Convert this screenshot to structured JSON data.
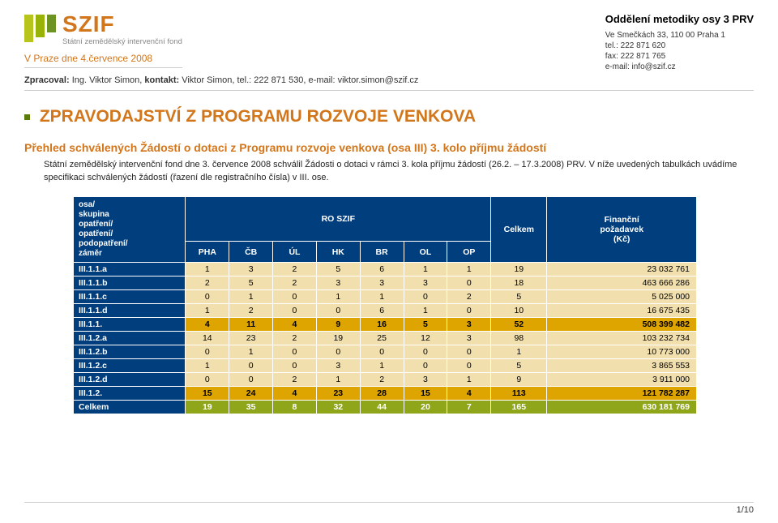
{
  "logo": {
    "main": "SZIF",
    "sub": "Státní zemědělský intervenční fond"
  },
  "date_line": "V Praze dne 4.července 2008",
  "right": {
    "dept": "Oddělení metodiky osy 3 PRV",
    "addr": "Ve Smečkách 33, 110 00 Praha 1",
    "tel": "tel.: 222 871 620",
    "fax": "fax: 222 871 765",
    "mail": "e-mail: info@szif.cz"
  },
  "contact": {
    "zprac_lbl": "Zpracoval: ",
    "zprac_val": "Ing. Viktor Simon, ",
    "kont_lbl": "kontakt: ",
    "kont_val": "Viktor Simon, tel.: 222 871 530, e-mail: viktor.simon@szif.cz"
  },
  "h1": "ZPRAVODAJSTVÍ Z PROGRAMU ROZVOJE VENKOVA",
  "h2": "Přehled schválených Žádostí o dotaci z Programu rozvoje venkova (osa III) 3. kolo příjmu žádostí",
  "para": "Státní zemědělský intervenční fond dne 3. července 2008 schválil Žádosti o dotaci v rámci 3. kola příjmu žádostí (26.2. – 17.3.2008) PRV. V níže uvedených tabulkách uvádíme specifikaci schválených žádostí (řazení dle registračního čísla) v III. ose.",
  "table": {
    "head_row_label": "osa/\nskupina\nopatření/\nopatření/\npodopatření/\nzáměr",
    "head_center": "RO SZIF",
    "head_celkem": "Celkem",
    "head_fin": "Finanční\npožadavek\n(Kč)",
    "cols": [
      "PHA",
      "ČB",
      "ÚL",
      "HK",
      "BR",
      "OL",
      "OP"
    ],
    "rows": [
      {
        "label": "III.1.1.a",
        "v": [
          1,
          3,
          2,
          5,
          6,
          1,
          1
        ],
        "sum": 19,
        "fin": "23 032 761",
        "cls": ""
      },
      {
        "label": "III.1.1.b",
        "v": [
          2,
          5,
          2,
          3,
          3,
          3,
          0
        ],
        "sum": 18,
        "fin": "463 666 286",
        "cls": ""
      },
      {
        "label": "III.1.1.c",
        "v": [
          0,
          1,
          0,
          1,
          1,
          0,
          2
        ],
        "sum": 5,
        "fin": "5 025 000",
        "cls": ""
      },
      {
        "label": "III.1.1.d",
        "v": [
          1,
          2,
          0,
          0,
          6,
          1,
          0
        ],
        "sum": 10,
        "fin": "16 675 435",
        "cls": ""
      },
      {
        "label": "III.1.1.",
        "v": [
          4,
          11,
          4,
          9,
          16,
          5,
          3
        ],
        "sum": 52,
        "fin": "508 399 482",
        "cls": "subtotal"
      },
      {
        "label": "III.1.2.a",
        "v": [
          14,
          23,
          2,
          19,
          25,
          12,
          3
        ],
        "sum": 98,
        "fin": "103 232 734",
        "cls": ""
      },
      {
        "label": "III.1.2.b",
        "v": [
          0,
          1,
          0,
          0,
          0,
          0,
          0
        ],
        "sum": 1,
        "fin": "10 773 000",
        "cls": ""
      },
      {
        "label": "III.1.2.c",
        "v": [
          1,
          0,
          0,
          3,
          1,
          0,
          0
        ],
        "sum": 5,
        "fin": "3 865 553",
        "cls": ""
      },
      {
        "label": "III.1.2.d",
        "v": [
          0,
          0,
          2,
          1,
          2,
          3,
          1
        ],
        "sum": 9,
        "fin": "3 911 000",
        "cls": ""
      },
      {
        "label": "III.1.2.",
        "v": [
          15,
          24,
          4,
          23,
          28,
          15,
          4
        ],
        "sum": 113,
        "fin": "121 782 287",
        "cls": "subtotal"
      },
      {
        "label": "Celkem",
        "v": [
          19,
          35,
          8,
          32,
          44,
          20,
          7
        ],
        "sum": 165,
        "fin": "630 181 769",
        "cls": "grand"
      }
    ],
    "col_widths_pct": [
      18,
      7,
      7,
      7,
      7,
      7,
      7,
      7,
      9,
      24
    ]
  },
  "pagenum": "1/10",
  "colors": {
    "orange": "#d2761b",
    "navy": "#003e7e",
    "cream": "#f2dfae",
    "gold": "#dea400",
    "green": "#8fa61a"
  }
}
